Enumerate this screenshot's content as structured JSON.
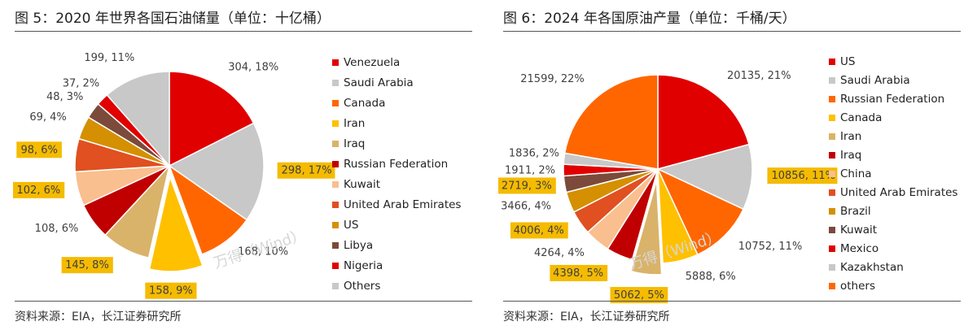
{
  "left_panel": {
    "title": "图 5：2020 年世界各国石油储量（单位：十亿桶）",
    "source": "资料来源：EIA，长江证券研究所",
    "watermark": "万得（Wind）"
  },
  "right_panel": {
    "title": "图 6：2024 年各国原油产量（单位：千桶/天）",
    "source": "资料来源：EIA，长江证券研究所",
    "watermark": "万得（Wind）"
  },
  "chart_data": [
    {
      "type": "pie",
      "title": "2020 年世界各国石油储量（单位：十亿桶）",
      "legend_position": "right",
      "categories": [
        "Venezuela",
        "Saudi Arabia",
        "Canada",
        "Iran",
        "Iraq",
        "Russian Federation",
        "Kuwait",
        "United Arab Emirates",
        "US",
        "Libya",
        "Nigeria",
        "Others"
      ],
      "values": [
        304,
        298,
        168,
        158,
        145,
        108,
        102,
        98,
        69,
        48,
        37,
        199
      ],
      "labels": [
        "304, 18%",
        "298, 17%",
        "168, 10%",
        "158, 9%",
        "145, 8%",
        "108, 6%",
        "102, 6%",
        "98, 6%",
        "69, 4%",
        "48, 3%",
        "37, 2%",
        "199, 11%"
      ],
      "colors": [
        "#e00000",
        "#c8c8c8",
        "#ff6600",
        "#ffc000",
        "#d9b36a",
        "#c00000",
        "#f9bf8f",
        "#e05020",
        "#d49000",
        "#7b4a3a",
        "#e00000",
        "#c8c8c8"
      ],
      "exploded": [
        false,
        false,
        false,
        true,
        false,
        false,
        false,
        false,
        false,
        false,
        false,
        false
      ],
      "highlighted_labels": [
        false,
        true,
        false,
        true,
        true,
        false,
        true,
        true,
        false,
        false,
        false,
        false
      ]
    },
    {
      "type": "pie",
      "title": "2024 年各国原油产量（单位：千桶/天）",
      "legend_position": "right",
      "categories": [
        "US",
        "Saudi Arabia",
        "Russian Federation",
        "Canada",
        "Iran",
        "Iraq",
        "China",
        "United Arab Emirates",
        "Brazil",
        "Kuwait",
        "Mexico",
        "Kazakhstan",
        "others"
      ],
      "values": [
        20135,
        10856,
        10752,
        5888,
        5062,
        4398,
        4264,
        4006,
        3466,
        2719,
        1911,
        1836,
        21599
      ],
      "labels": [
        "20135, 21%",
        "10856, 11%",
        "10752, 11%",
        "5888, 6%",
        "5062, 5%",
        "4398, 5%",
        "4264, 4%",
        "4006, 4%",
        "3466, 4%",
        "2719, 3%",
        "1911, 2%",
        "1836, 2%",
        "21599, 22%"
      ],
      "colors": [
        "#e00000",
        "#c8c8c8",
        "#ff6600",
        "#ffc000",
        "#d9b36a",
        "#c00000",
        "#f9bf8f",
        "#e05020",
        "#d49000",
        "#7b4a3a",
        "#e00000",
        "#c8c8c8",
        "#ff6600"
      ],
      "exploded": [
        false,
        false,
        false,
        false,
        true,
        false,
        false,
        false,
        false,
        false,
        false,
        false,
        false
      ],
      "highlighted_labels": [
        false,
        true,
        false,
        false,
        true,
        true,
        false,
        true,
        false,
        true,
        false,
        false,
        false
      ]
    }
  ]
}
